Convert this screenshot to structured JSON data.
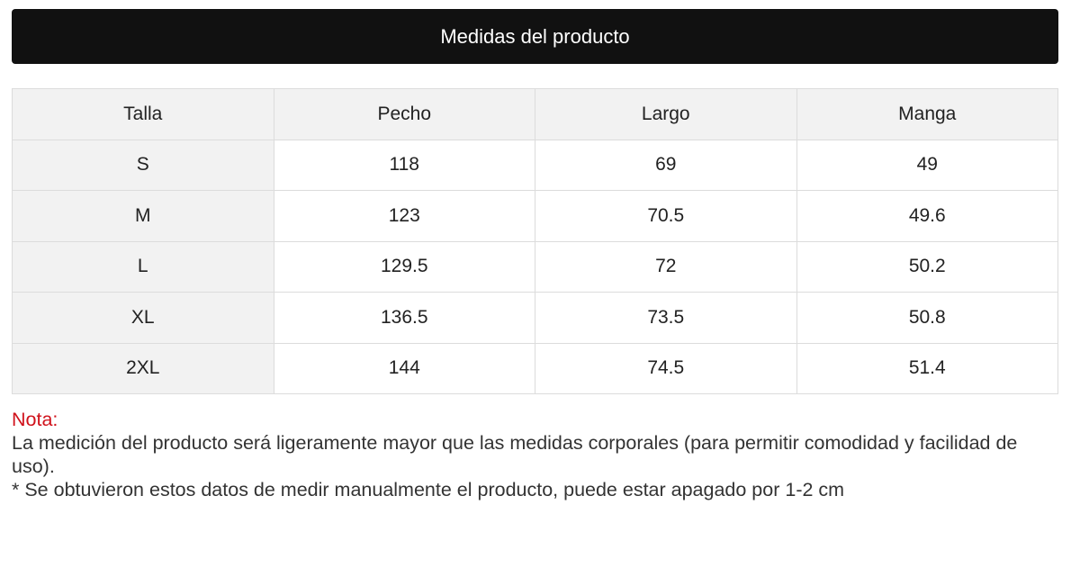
{
  "header": {
    "title": "Medidas del producto"
  },
  "table": {
    "columns": [
      "Talla",
      "Pecho",
      "Largo",
      "Manga"
    ],
    "rows": [
      [
        "S",
        118,
        69,
        49
      ],
      [
        "M",
        123,
        70.5,
        49.6
      ],
      [
        "L",
        129.5,
        72,
        50.2
      ],
      [
        "XL",
        136.5,
        73.5,
        50.8
      ],
      [
        "2XL",
        144,
        74.5,
        51.4
      ]
    ]
  },
  "note": {
    "label": "Nota:",
    "lines": [
      "La medición del producto será ligeramente mayor que las medidas corporales (para permitir comodidad y facilidad de uso).",
      "* Se obtuvieron estos datos de medir manualmente el producto, puede estar apagado por 1-2 cm"
    ]
  }
}
